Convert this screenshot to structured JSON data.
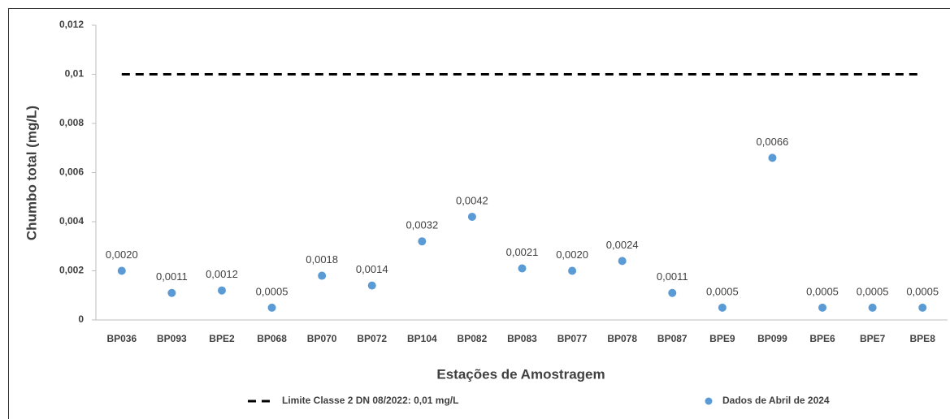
{
  "chart_data": {
    "type": "scatter",
    "x_title": "Estações de Amostragem",
    "y_title": "Chumbo total (mg/L)",
    "categories": [
      "BP036",
      "BP093",
      "BPE2",
      "BP068",
      "BP070",
      "BP072",
      "BP104",
      "BP082",
      "BP083",
      "BP077",
      "BP078",
      "BP087",
      "BPE9",
      "BP099",
      "BPE6",
      "BPE7",
      "BPE8"
    ],
    "series": [
      {
        "name": "Limite Classe 2 DN 08/2022: 0,01 mg/L",
        "color": "#000000",
        "mark": "dashed-line",
        "values": [
          0.01,
          0.01,
          0.01,
          0.01,
          0.01,
          0.01,
          0.01,
          0.01,
          0.01,
          0.01,
          0.01,
          0.01,
          0.01,
          0.01,
          0.01,
          0.01,
          0.01
        ]
      },
      {
        "name": "Dados de Abril de 2024",
        "color": "#5b9bd5",
        "mark": "dot",
        "values": [
          0.002,
          0.0011,
          0.0012,
          0.0005,
          0.0018,
          0.0014,
          0.0032,
          0.0042,
          0.0021,
          0.002,
          0.0024,
          0.0011,
          0.0005,
          0.0066,
          0.0005,
          0.0005,
          0.0005
        ],
        "value_labels": [
          "0,0020",
          "0,0011",
          "0,0012",
          "0,0005",
          "0,0018",
          "0,0014",
          "0,0032",
          "0,0042",
          "0,0021",
          "0,0020",
          "0,0024",
          "0,0011",
          "0,0005",
          "0,0066",
          "0,0005",
          "0,0005",
          "0,0005"
        ]
      }
    ],
    "ylim": [
      0,
      0.012
    ],
    "yticks": [
      0,
      {
        "value": 0.002,
        "label": "0,002"
      },
      {
        "value": 0.004,
        "label": "0,004"
      },
      {
        "value": 0.006,
        "label": "0,006"
      },
      {
        "value": 0.008,
        "label": "0,008"
      },
      {
        "value": 0.01,
        "label": "0,01"
      },
      {
        "value": 0.012,
        "label": "0,012"
      }
    ],
    "legend": "bottom"
  }
}
